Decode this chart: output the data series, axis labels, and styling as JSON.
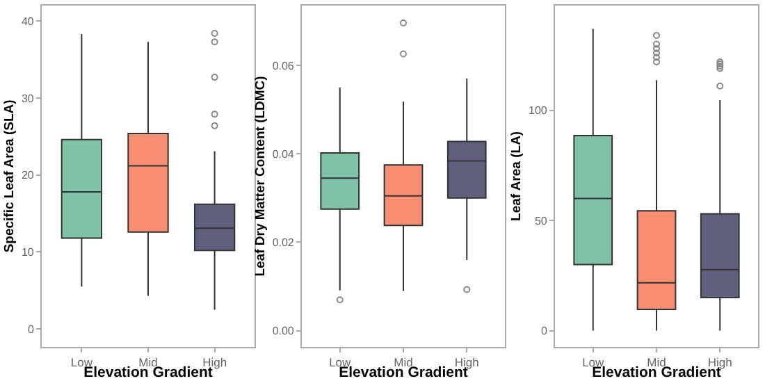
{
  "chart_data": [
    {
      "type": "box",
      "categories": [
        "Low",
        "Mid",
        "High"
      ],
      "colors": [
        "#80c2a8",
        "#f98e72",
        "#60607e"
      ],
      "xlabel": "Elevation Gradient",
      "ylabel": "Specific Leaf Area (SLA)",
      "ylim": [
        -2.3,
        42
      ],
      "yticks": [
        0,
        10,
        20,
        30,
        40
      ],
      "boxes": [
        {
          "low": 5.5,
          "q1": 11.8,
          "median": 17.8,
          "q3": 24.6,
          "high": 38.3
        },
        {
          "low": 4.3,
          "q1": 12.6,
          "median": 21.2,
          "q3": 25.4,
          "high": 37.3
        },
        {
          "low": 2.5,
          "q1": 10.2,
          "median": 13.1,
          "q3": 16.2,
          "high": 23.1,
          "outliers": [
            26.4,
            27.9,
            32.7,
            37.3,
            38.4
          ]
        }
      ]
    },
    {
      "type": "box",
      "categories": [
        "Low",
        "Mid",
        "High"
      ],
      "colors": [
        "#80c2a8",
        "#f98e72",
        "#60607e"
      ],
      "xlabel": "Elevation Gradient",
      "ylabel": "Leaf Dry Matter Content (LDMC)",
      "ylim": [
        -0.0036,
        0.0735
      ],
      "yticks": [
        {
          "value": 0,
          "label": "0.00"
        },
        {
          "value": 0.02,
          "label": "0.02"
        },
        {
          "value": 0.04,
          "label": "0.04"
        },
        {
          "value": 0.06,
          "label": "0.06"
        }
      ],
      "boxes": [
        {
          "low": 0.0091,
          "q1": 0.0275,
          "median": 0.0345,
          "q3": 0.0402,
          "high": 0.055,
          "outliers": [
            0.007
          ]
        },
        {
          "low": 0.009,
          "q1": 0.0238,
          "median": 0.0305,
          "q3": 0.0375,
          "high": 0.0518,
          "outliers": [
            0.0626,
            0.0696
          ]
        },
        {
          "low": 0.016,
          "q1": 0.03,
          "median": 0.0384,
          "q3": 0.0428,
          "high": 0.057,
          "outliers": [
            0.0093
          ]
        }
      ]
    },
    {
      "type": "box",
      "categories": [
        "Low",
        "Mid",
        "High"
      ],
      "colors": [
        "#80c2a8",
        "#f98e72",
        "#60607e"
      ],
      "xlabel": "Elevation Gradient",
      "ylabel": "Leaf Area (LA)",
      "ylim": [
        -7.3,
        147.5
      ],
      "yticks": [
        0,
        50,
        100
      ],
      "boxes": [
        {
          "low": 0,
          "q1": 30,
          "median": 60,
          "q3": 88.5,
          "high": 137
        },
        {
          "low": 0,
          "q1": 9.6,
          "median": 21.7,
          "q3": 54.4,
          "high": 113.7,
          "outliers": [
            122,
            124,
            126,
            128,
            130,
            134
          ]
        },
        {
          "low": 0,
          "q1": 15,
          "median": 27.7,
          "q3": 53,
          "high": 104.6,
          "outliers": [
            111,
            119,
            120,
            121,
            122
          ]
        }
      ]
    }
  ]
}
